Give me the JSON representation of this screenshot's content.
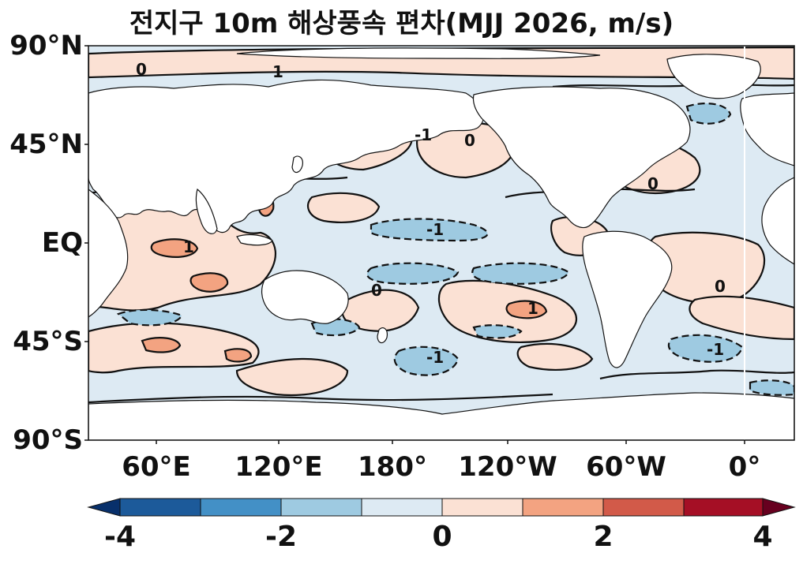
{
  "title": "전지구 10m 해상풍속 편차(MJJ 2026, m/s)",
  "lat_ticks": [
    "90°N",
    "45°N",
    "EQ",
    "45°S",
    "90°S"
  ],
  "lon_ticks": [
    "60°E",
    "120°E",
    "180°",
    "120°W",
    "60°W",
    "0°"
  ],
  "colorbar": {
    "tick_labels": [
      "-4",
      "-2",
      "0",
      "2",
      "4"
    ],
    "levels": [
      -4,
      -3,
      -2,
      -1,
      0,
      1,
      2,
      3,
      4
    ],
    "colors": [
      "#08306b",
      "#1c5a9a",
      "#4390c6",
      "#9ecae1",
      "#ddeaf3",
      "#fbe1d4",
      "#f3a381",
      "#d25a49",
      "#a50f25",
      "#67001f"
    ],
    "extend": "both"
  },
  "colors": {
    "land": "#ffffff",
    "ocean_base": "#ddeaf3",
    "positive_light": "#fbe1d4",
    "positive_mid": "#f3a381",
    "negative_mid": "#9ecae1",
    "coast": "#111111"
  },
  "contour_labels": [
    "0",
    "1",
    "-1",
    "0",
    "1",
    "-1",
    "0",
    "-1",
    "1",
    "0",
    "-1",
    "0"
  ]
}
